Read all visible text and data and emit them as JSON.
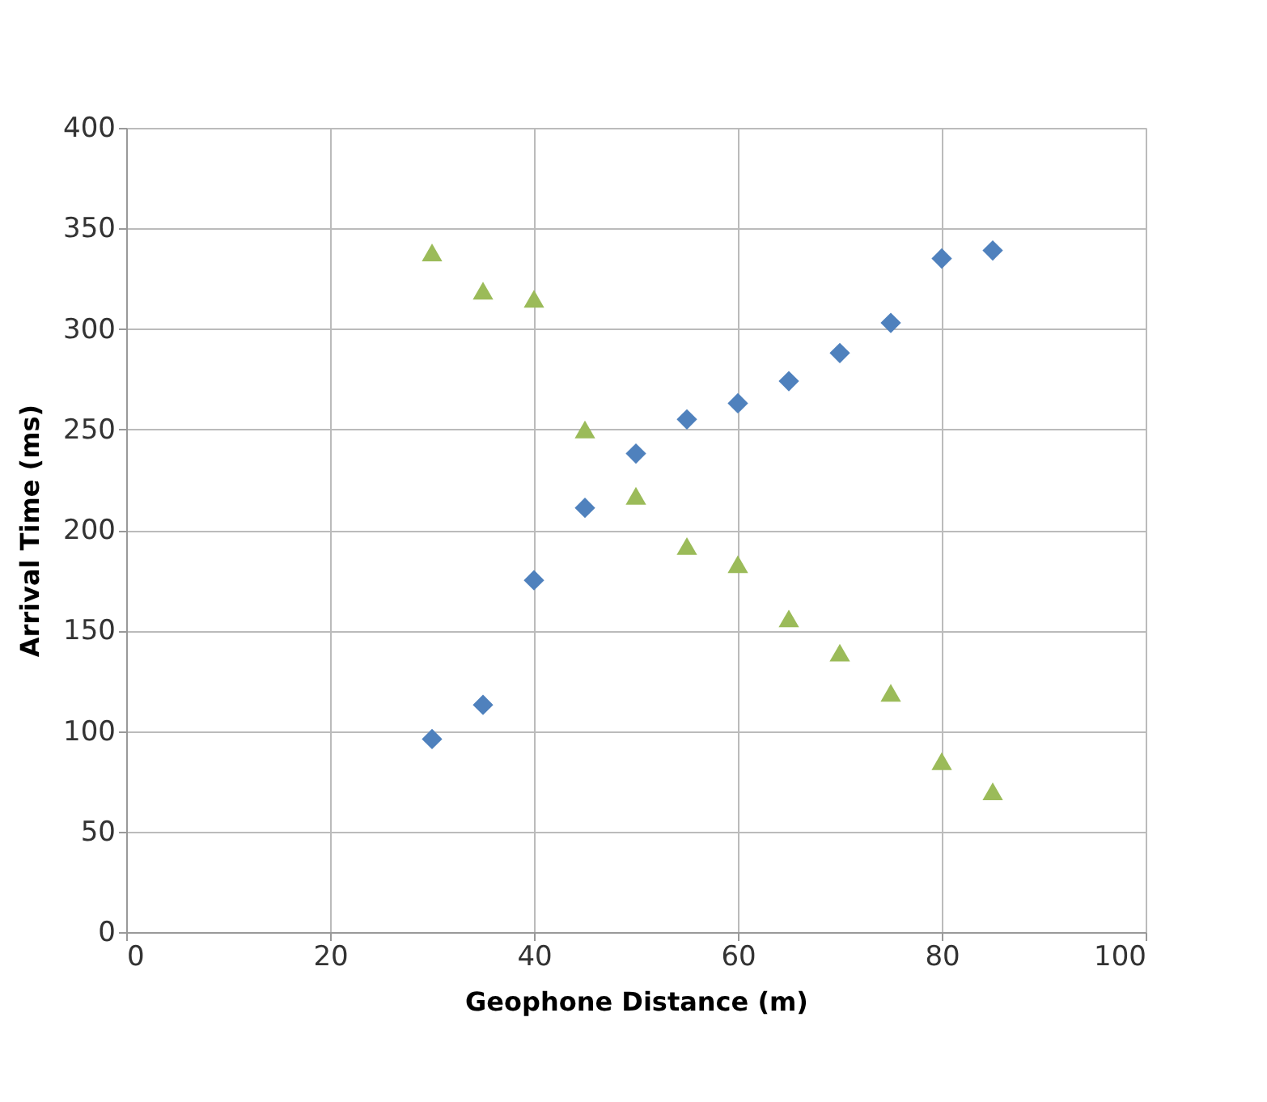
{
  "chart_data": {
    "type": "scatter",
    "xlabel": "Geophone Distance (m)",
    "ylabel": "Arrival Time (ms)",
    "x": [
      30,
      35,
      40,
      45,
      50,
      55,
      60,
      65,
      70,
      75,
      80,
      85
    ],
    "series": [
      {
        "color": "#4f81bd",
        "marker": "diamond",
        "values": [
          96,
          113,
          175,
          211,
          238,
          255,
          263,
          274,
          288,
          303,
          335,
          339
        ]
      },
      {
        "color": "#9bbb59",
        "marker": "triangle",
        "values": [
          338,
          319,
          315,
          250,
          217,
          192,
          183,
          156,
          139,
          119,
          85,
          70
        ]
      }
    ],
    "xlim": [
      0,
      100
    ],
    "xticks": [
      0,
      20,
      40,
      60,
      80,
      100
    ],
    "ylim": [
      0,
      400
    ],
    "yticks": [
      0,
      50,
      100,
      150,
      200,
      250,
      300,
      350,
      400
    ],
    "grid": true
  }
}
